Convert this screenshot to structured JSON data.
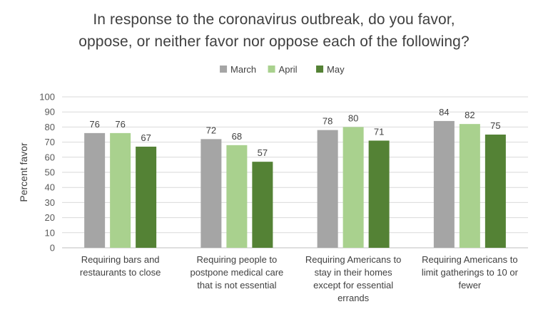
{
  "chart_data": {
    "type": "bar",
    "title_lines": [
      "In response to the coronavirus outbreak, do you favor,",
      "oppose, or neither favor nor oppose each of the following?"
    ],
    "ylabel": "Percent favor",
    "xlabel": "",
    "ylim": [
      0,
      100
    ],
    "yticks": [
      0,
      10,
      20,
      30,
      40,
      50,
      60,
      70,
      80,
      90,
      100
    ],
    "grid": true,
    "legend_position": "top",
    "categories": [
      [
        "Requiring bars and",
        "restaurants to close"
      ],
      [
        "Requiring people to",
        "postpone medical care",
        "that is not essential"
      ],
      [
        "Requiring Americans to",
        "stay in their homes",
        "except for essential",
        "errands"
      ],
      [
        "Requiring Americans to",
        "limit gatherings to 10 or",
        "fewer"
      ]
    ],
    "series": [
      {
        "name": "March",
        "color": "#a5a5a5",
        "values": [
          76,
          72,
          78,
          84
        ]
      },
      {
        "name": "April",
        "color": "#a9d18e",
        "values": [
          76,
          68,
          80,
          82
        ]
      },
      {
        "name": "May",
        "color": "#548235",
        "values": [
          67,
          57,
          71,
          75
        ]
      }
    ]
  }
}
